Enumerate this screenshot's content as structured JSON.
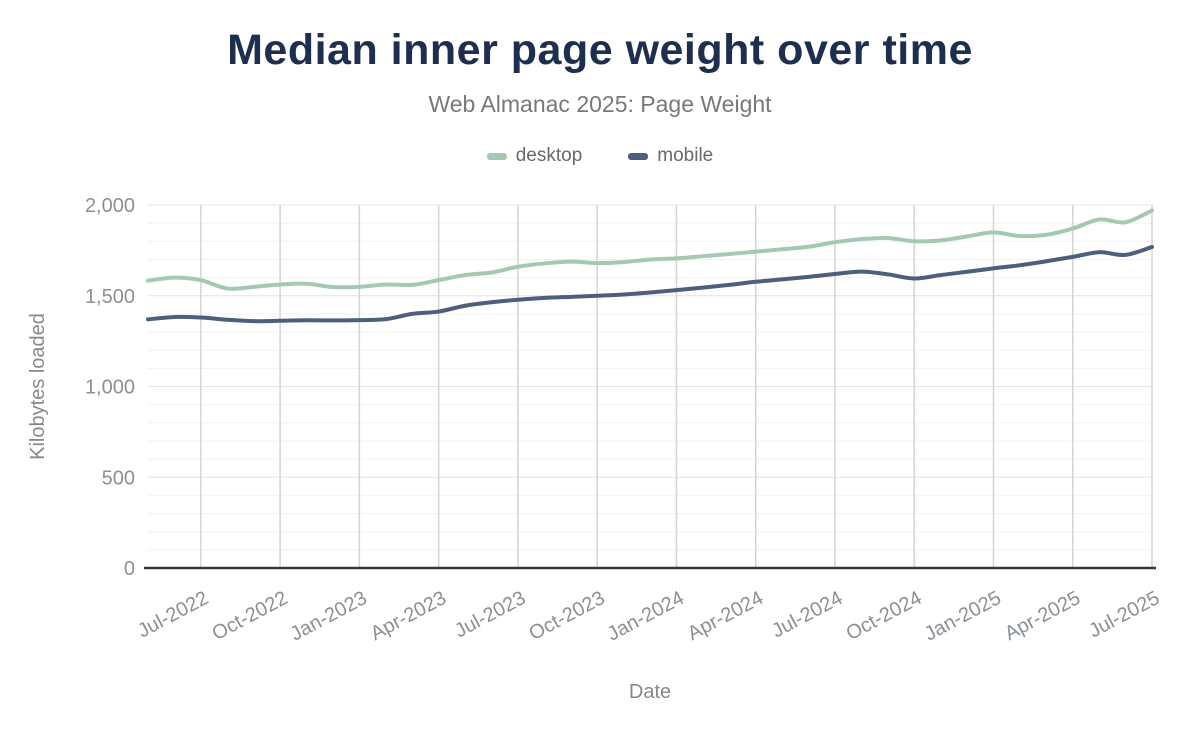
{
  "header": {
    "title": "Median inner page weight over time",
    "subtitle": "Web Almanac 2025: Page Weight"
  },
  "legend": {
    "items": [
      {
        "label": "desktop"
      },
      {
        "label": "mobile"
      }
    ]
  },
  "axes": {
    "y_title": "Kilobytes loaded",
    "x_title": "Date"
  },
  "colors": {
    "title": "#1e2e4e",
    "subtitle": "#75797c",
    "legend_text": "#66696b",
    "tick_text": "#8b9095",
    "axis_title_text": "#85898d",
    "grid_minor": "#f2f2f2",
    "grid_major_h": "#e4e4e4",
    "grid_vertical": "#d4d4d4",
    "axis_line": "#37383a"
  },
  "chart_data": {
    "type": "line",
    "title": "Median inner page weight over time",
    "subtitle": "Web Almanac 2025: Page Weight",
    "xlabel": "Date",
    "ylabel": "Kilobytes loaded",
    "ylim": [
      0,
      2000
    ],
    "y_ticks": [
      0,
      500,
      1000,
      1500,
      2000
    ],
    "y_minor_step": 100,
    "grid": "on",
    "legend_position": "top",
    "x": [
      "May-2022",
      "Jun-2022",
      "Jul-2022",
      "Aug-2022",
      "Sep-2022",
      "Oct-2022",
      "Nov-2022",
      "Dec-2022",
      "Jan-2023",
      "Feb-2023",
      "Mar-2023",
      "Apr-2023",
      "May-2023",
      "Jun-2023",
      "Jul-2023",
      "Aug-2023",
      "Sep-2023",
      "Oct-2023",
      "Nov-2023",
      "Dec-2023",
      "Jan-2024",
      "Feb-2024",
      "Mar-2024",
      "Apr-2024",
      "May-2024",
      "Jun-2024",
      "Jul-2024",
      "Aug-2024",
      "Sep-2024",
      "Oct-2024",
      "Nov-2024",
      "Dec-2024",
      "Jan-2025",
      "Feb-2025",
      "Mar-2025",
      "Apr-2025",
      "May-2025",
      "Jun-2025",
      "Jul-2025"
    ],
    "x_tick_labels": [
      "Jul-2022",
      "Oct-2022",
      "Jan-2023",
      "Apr-2023",
      "Jul-2023",
      "Oct-2023",
      "Jan-2024",
      "Apr-2024",
      "Jul-2024",
      "Oct-2024",
      "Jan-2025",
      "Apr-2025",
      "Jul-2025"
    ],
    "x_tick_indices": [
      2,
      5,
      8,
      11,
      14,
      17,
      20,
      23,
      26,
      29,
      32,
      35,
      38
    ],
    "series": [
      {
        "name": "desktop",
        "color": "#a3c9b2",
        "values": [
          1583,
          1600,
          1586,
          1540,
          1549,
          1562,
          1566,
          1548,
          1549,
          1562,
          1560,
          1586,
          1614,
          1628,
          1660,
          1678,
          1688,
          1680,
          1685,
          1700,
          1706,
          1718,
          1730,
          1743,
          1756,
          1770,
          1795,
          1812,
          1818,
          1800,
          1805,
          1827,
          1849,
          1829,
          1836,
          1870,
          1920,
          1905,
          1970
        ]
      },
      {
        "name": "mobile",
        "color": "#4d5f7d",
        "values": [
          1370,
          1383,
          1380,
          1368,
          1360,
          1362,
          1365,
          1364,
          1366,
          1371,
          1400,
          1413,
          1445,
          1464,
          1478,
          1488,
          1494,
          1500,
          1507,
          1518,
          1531,
          1545,
          1560,
          1577,
          1590,
          1604,
          1620,
          1633,
          1618,
          1595,
          1614,
          1632,
          1651,
          1668,
          1690,
          1714,
          1740,
          1725,
          1769
        ]
      }
    ]
  }
}
